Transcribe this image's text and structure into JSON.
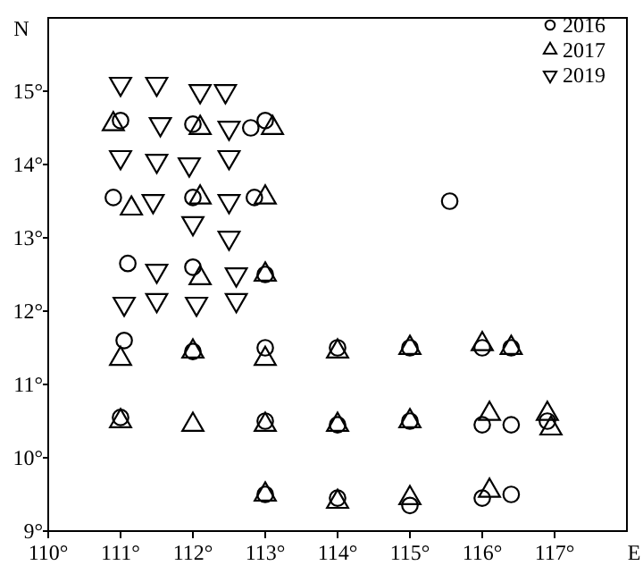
{
  "chart_data": {
    "type": "scatter",
    "xlabel": "E",
    "ylabel": "N",
    "xlim": [
      110,
      118
    ],
    "ylim": [
      9,
      16
    ],
    "xticks": [
      {
        "value": 110,
        "label": "110°"
      },
      {
        "value": 111,
        "label": "111°"
      },
      {
        "value": 112,
        "label": "112°"
      },
      {
        "value": 113,
        "label": "113°"
      },
      {
        "value": 114,
        "label": "114°"
      },
      {
        "value": 115,
        "label": "115°"
      },
      {
        "value": 116,
        "label": "116°"
      },
      {
        "value": 117,
        "label": "117°"
      }
    ],
    "yticks": [
      {
        "value": 9,
        "label": "9°"
      },
      {
        "value": 10,
        "label": "10°"
      },
      {
        "value": 11,
        "label": "11°"
      },
      {
        "value": 12,
        "label": "12°"
      },
      {
        "value": 13,
        "label": "13°"
      },
      {
        "value": 14,
        "label": "14°"
      },
      {
        "value": 15,
        "label": "15°"
      }
    ],
    "grid": false,
    "legend": "top right",
    "series": [
      {
        "name": "2016",
        "color": "#000000",
        "marker": "circle",
        "x": [
          111.0,
          112.0,
          112.8,
          113.0,
          110.9,
          112.0,
          112.85,
          111.1,
          112.0,
          113.0,
          115.55,
          111.05,
          112.0,
          113.0,
          111.0,
          113.0,
          113.0,
          114.0,
          115.0,
          116.0,
          116.4,
          114.0,
          115.0,
          116.0,
          116.4,
          116.9,
          114.0,
          115.0,
          116.0,
          116.4
        ],
        "values": [
          14.6,
          14.55,
          14.5,
          14.6,
          13.55,
          13.55,
          13.55,
          12.65,
          12.6,
          12.5,
          13.5,
          11.6,
          11.45,
          11.5,
          10.55,
          10.5,
          9.5,
          11.5,
          11.5,
          11.5,
          11.5,
          10.45,
          10.5,
          10.45,
          10.45,
          10.5,
          9.45,
          9.35,
          9.45,
          9.5
        ]
      },
      {
        "name": "2017",
        "color": "#000000",
        "marker": "triangle",
        "x": [
          110.9,
          112.1,
          113.1,
          111.15,
          112.1,
          113.0,
          112.1,
          113.0,
          111.0,
          112.0,
          113.0,
          111.0,
          112.0,
          113.0,
          113.0,
          114.0,
          115.0,
          116.0,
          116.4,
          114.0,
          115.0,
          116.1,
          116.9,
          116.95,
          114.0,
          115.0,
          116.1
        ],
        "values": [
          14.55,
          14.5,
          14.5,
          13.4,
          13.55,
          13.55,
          12.45,
          12.5,
          11.35,
          11.45,
          11.35,
          10.5,
          10.45,
          10.45,
          9.5,
          11.45,
          11.5,
          11.55,
          11.5,
          10.45,
          10.5,
          10.6,
          10.6,
          10.4,
          9.4,
          9.45,
          9.55
        ]
      },
      {
        "name": "2019",
        "color": "#000000",
        "marker": "triangle-down",
        "x": [
          111.0,
          111.5,
          112.1,
          112.45,
          111.55,
          112.5,
          111.0,
          111.5,
          111.95,
          112.5,
          111.45,
          112.5,
          112.0,
          112.5,
          111.5,
          112.6,
          111.05,
          111.5,
          112.05,
          112.6
        ],
        "values": [
          15.1,
          15.1,
          15.0,
          15.0,
          14.55,
          14.5,
          14.1,
          14.05,
          14.0,
          14.1,
          13.5,
          13.5,
          13.2,
          13.0,
          12.55,
          12.5,
          12.1,
          12.15,
          12.1,
          12.15
        ]
      }
    ]
  }
}
